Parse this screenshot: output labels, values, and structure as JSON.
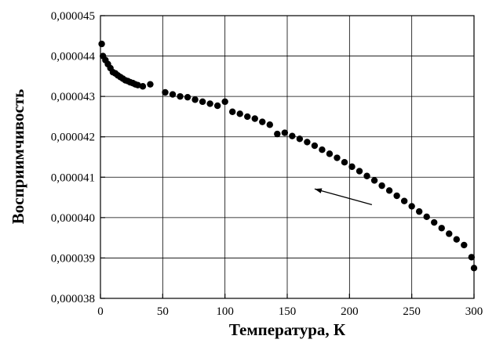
{
  "chart_data": {
    "type": "scatter",
    "xlabel": "Температура, К",
    "ylabel": "Восприимчивость",
    "xlim": [
      0,
      300
    ],
    "ylim": [
      3.8e-05,
      4.5e-05
    ],
    "x_ticks": [
      0,
      50,
      100,
      150,
      200,
      250,
      300
    ],
    "x_tick_labels": [
      "0",
      "50",
      "100",
      "150",
      "200",
      "250",
      "300"
    ],
    "y_ticks": [
      3.8e-05,
      3.9e-05,
      4e-05,
      4.1e-05,
      4.2e-05,
      4.3e-05,
      4.4e-05,
      4.5e-05
    ],
    "y_tick_labels": [
      "0,000038",
      "0,000039",
      "0,000040",
      "0,000041",
      "0,000042",
      "0,000043",
      "0,000044",
      "0,000045"
    ],
    "grid": true,
    "series": [
      {
        "x": [
          1,
          2,
          4,
          6,
          8,
          10,
          12,
          14,
          16,
          18,
          20,
          22,
          24,
          26,
          28,
          30,
          34,
          40,
          52,
          58,
          64,
          70,
          76,
          82,
          88,
          94,
          100,
          106,
          112,
          118,
          124,
          130,
          136,
          142,
          148,
          154,
          160,
          166,
          172,
          178,
          184,
          190,
          196,
          202,
          208,
          214,
          220,
          226,
          232,
          238,
          244,
          250,
          256,
          262,
          268,
          274,
          280,
          286,
          292,
          298,
          300
        ],
        "y": [
          4.43e-05,
          4.4e-05,
          4.39e-05,
          4.38e-05,
          4.37e-05,
          4.36e-05,
          4.357e-05,
          4.352e-05,
          4.348e-05,
          4.344e-05,
          4.34e-05,
          4.338e-05,
          4.335e-05,
          4.333e-05,
          4.33e-05,
          4.328e-05,
          4.325e-05,
          4.33e-05,
          4.31e-05,
          4.305e-05,
          4.3e-05,
          4.298e-05,
          4.292e-05,
          4.287e-05,
          4.282e-05,
          4.277e-05,
          4.287e-05,
          4.262e-05,
          4.257e-05,
          4.25e-05,
          4.245e-05,
          4.237e-05,
          4.23e-05,
          4.207e-05,
          4.21e-05,
          4.202e-05,
          4.195e-05,
          4.187e-05,
          4.178e-05,
          4.168e-05,
          4.158e-05,
          4.148e-05,
          4.137e-05,
          4.126e-05,
          4.115e-05,
          4.103e-05,
          4.092e-05,
          4.079e-05,
          4.067e-05,
          4.054e-05,
          4.041e-05,
          4.028e-05,
          4.015e-05,
          4.002e-05,
          3.988e-05,
          3.974e-05,
          3.96e-05,
          3.946e-05,
          3.932e-05,
          3.902e-05,
          3.875e-05
        ]
      }
    ],
    "annotations": [
      {
        "type": "arrow",
        "from": {
          "x": 218,
          "y": 4.032e-05
        },
        "to": {
          "x": 172,
          "y": 4.071e-05
        }
      }
    ]
  }
}
